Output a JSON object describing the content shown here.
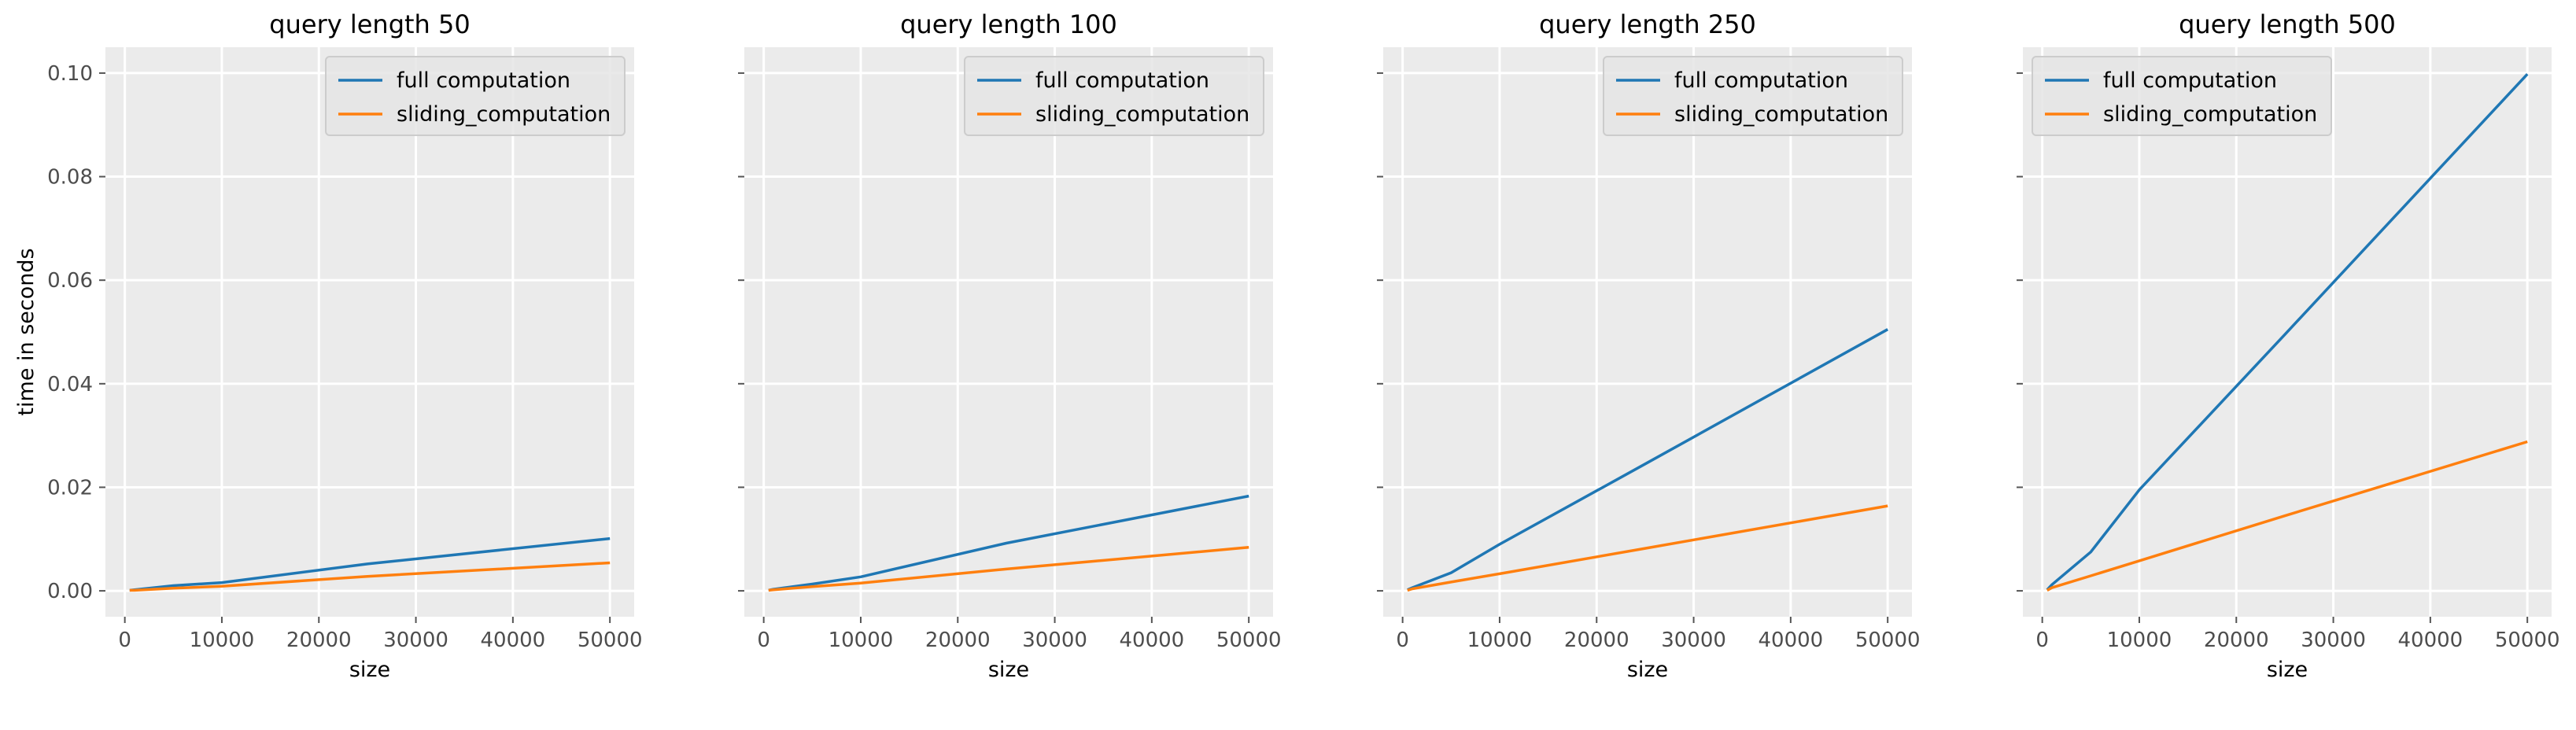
{
  "chart_data": [
    {
      "type": "line",
      "title": "query length 50",
      "xlabel": "size",
      "ylabel": "time in seconds",
      "xlim": [
        -2000,
        52500
      ],
      "ylim": [
        -0.005,
        0.105
      ],
      "xticks": [
        0,
        10000,
        20000,
        30000,
        40000,
        50000
      ],
      "yticks": [
        0.0,
        0.02,
        0.04,
        0.06,
        0.08,
        0.1
      ],
      "ytick_labels": [
        "0.00",
        "0.02",
        "0.04",
        "0.06",
        "0.08",
        "0.10"
      ],
      "grid": true,
      "legend": "top-right",
      "x": [
        500,
        1000,
        5000,
        10000,
        25000,
        50000
      ],
      "series": [
        {
          "name": "full computation",
          "color": "#1F77B4",
          "values": [
            0.0001,
            0.0002,
            0.001,
            0.0016,
            0.0052,
            0.0101
          ]
        },
        {
          "name": "sliding_computation",
          "color": "#FF7F0E",
          "values": [
            0.0001,
            0.0001,
            0.0005,
            0.0009,
            0.0028,
            0.0054
          ]
        }
      ]
    },
    {
      "type": "line",
      "title": "query length 100",
      "xlabel": "size",
      "ylabel": "",
      "xlim": [
        -2000,
        52500
      ],
      "ylim": [
        -0.005,
        0.105
      ],
      "xticks": [
        0,
        10000,
        20000,
        30000,
        40000,
        50000
      ],
      "yticks": [
        0.0,
        0.02,
        0.04,
        0.06,
        0.08,
        0.1
      ],
      "ytick_labels": [
        "",
        "",
        "",
        "",
        "",
        ""
      ],
      "grid": true,
      "legend": "top-right",
      "x": [
        500,
        1000,
        5000,
        10000,
        25000,
        50000
      ],
      "series": [
        {
          "name": "full computation",
          "color": "#1F77B4",
          "values": [
            0.0001,
            0.0003,
            0.0013,
            0.0027,
            0.0092,
            0.0183
          ]
        },
        {
          "name": "sliding_computation",
          "color": "#FF7F0E",
          "values": [
            0.0001,
            0.0002,
            0.0008,
            0.0015,
            0.0042,
            0.0084
          ]
        }
      ]
    },
    {
      "type": "line",
      "title": "query length 250",
      "xlabel": "size",
      "ylabel": "",
      "xlim": [
        -2000,
        52500
      ],
      "ylim": [
        -0.005,
        0.105
      ],
      "xticks": [
        0,
        10000,
        20000,
        30000,
        40000,
        50000
      ],
      "yticks": [
        0.0,
        0.02,
        0.04,
        0.06,
        0.08,
        0.1
      ],
      "ytick_labels": [
        "",
        "",
        "",
        "",
        "",
        ""
      ],
      "grid": true,
      "legend": "top-right",
      "x": [
        500,
        1000,
        5000,
        10000,
        25000,
        50000
      ],
      "series": [
        {
          "name": "full computation",
          "color": "#1F77B4",
          "values": [
            0.0002,
            0.0006,
            0.0035,
            0.009,
            0.0245,
            0.0505
          ]
        },
        {
          "name": "sliding_computation",
          "color": "#FF7F0E",
          "values": [
            0.0001,
            0.0004,
            0.0017,
            0.0033,
            0.0082,
            0.0164
          ]
        }
      ]
    },
    {
      "type": "line",
      "title": "query length 500",
      "xlabel": "size",
      "ylabel": "",
      "xlim": [
        -2000,
        52500
      ],
      "ylim": [
        -0.005,
        0.105
      ],
      "xticks": [
        0,
        10000,
        20000,
        30000,
        40000,
        50000
      ],
      "yticks": [
        0.0,
        0.02,
        0.04,
        0.06,
        0.08,
        0.1
      ],
      "ytick_labels": [
        "",
        "",
        "",
        "",
        "",
        ""
      ],
      "grid": true,
      "legend": "top-left",
      "x": [
        500,
        1000,
        5000,
        10000,
        25000,
        50000
      ],
      "series": [
        {
          "name": "full computation",
          "color": "#1F77B4",
          "values": [
            0.0002,
            0.0012,
            0.0075,
            0.0195,
            0.0495,
            0.0998
          ]
        },
        {
          "name": "sliding_computation",
          "color": "#FF7F0E",
          "values": [
            0.0001,
            0.0006,
            0.0029,
            0.0058,
            0.0145,
            0.0288
          ]
        }
      ]
    }
  ]
}
